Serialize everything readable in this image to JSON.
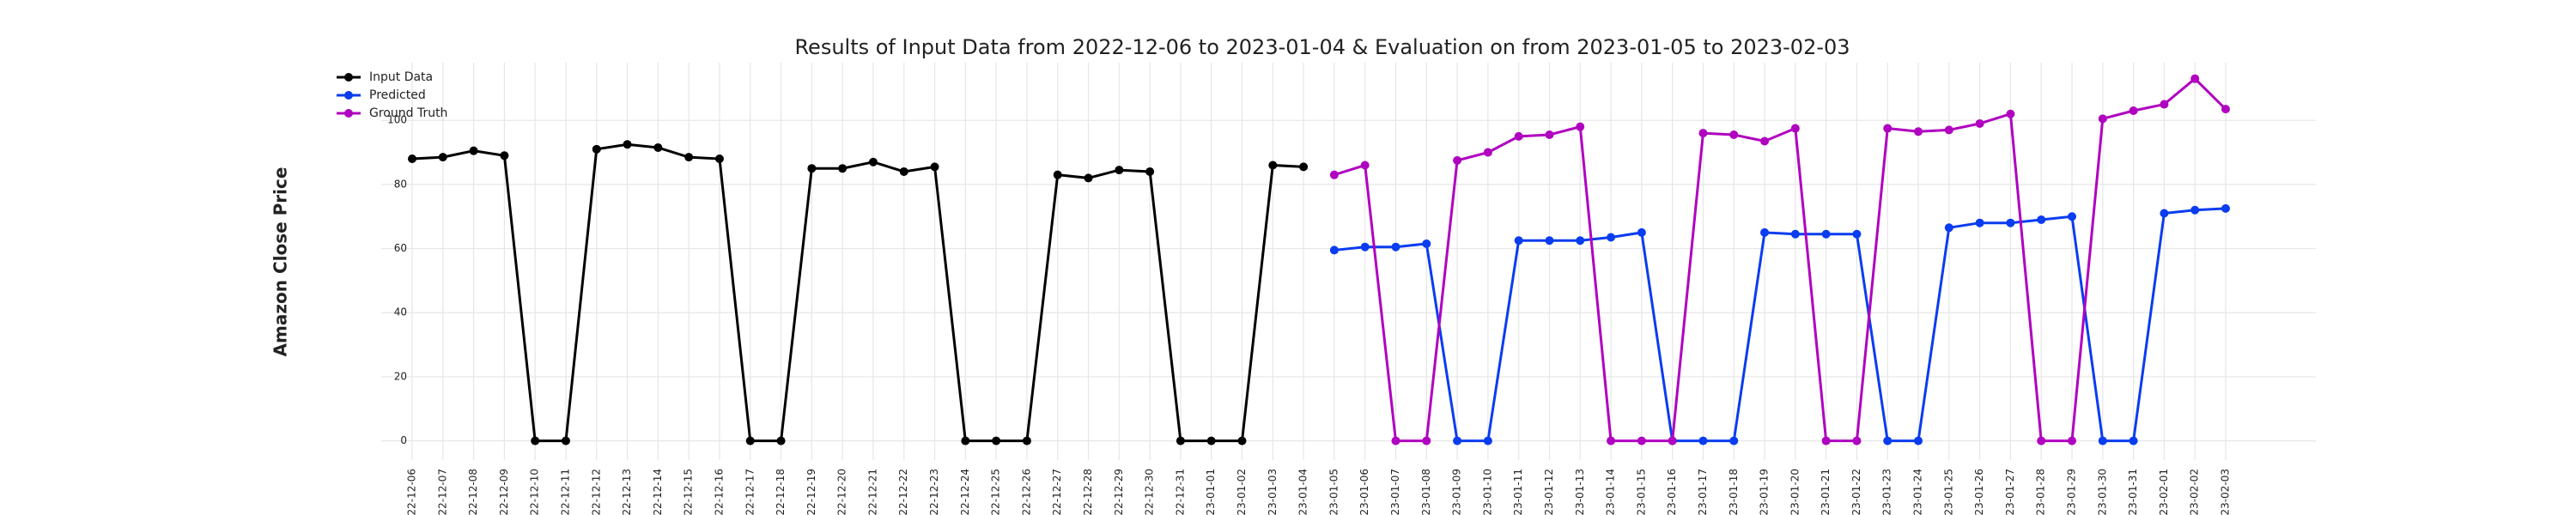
{
  "chart_data": {
    "type": "line",
    "title": "Results of Input Data from 2022-12-06 to 2023-01-04 & Evaluation on from 2023-01-05 to 2023-02-03",
    "ylabel": "Amazon Close Price",
    "categories": [
      "2022-12-06",
      "2022-12-07",
      "2022-12-08",
      "2022-12-09",
      "2022-12-10",
      "2022-12-11",
      "2022-12-12",
      "2022-12-13",
      "2022-12-14",
      "2022-12-15",
      "2022-12-16",
      "2022-12-17",
      "2022-12-18",
      "2022-12-19",
      "2022-12-20",
      "2022-12-21",
      "2022-12-22",
      "2022-12-23",
      "2022-12-24",
      "2022-12-25",
      "2022-12-26",
      "2022-12-27",
      "2022-12-28",
      "2022-12-29",
      "2022-12-30",
      "2022-12-31",
      "2023-01-01",
      "2023-01-02",
      "2023-01-03",
      "2023-01-04",
      "2023-01-05",
      "2023-01-06",
      "2023-01-07",
      "2023-01-08",
      "2023-01-09",
      "2023-01-10",
      "2023-01-11",
      "2023-01-12",
      "2023-01-13",
      "2023-01-14",
      "2023-01-15",
      "2023-01-16",
      "2023-01-17",
      "2023-01-18",
      "2023-01-19",
      "2023-01-20",
      "2023-01-21",
      "2023-01-22",
      "2023-01-23",
      "2023-01-24",
      "2023-01-25",
      "2023-01-26",
      "2023-01-27",
      "2023-01-28",
      "2023-01-29",
      "2023-01-30",
      "2023-01-31",
      "2023-02-01",
      "2023-02-02",
      "2023-02-03"
    ],
    "series": [
      {
        "name": "Input Data",
        "color": "#000000",
        "values": [
          88,
          88.5,
          90.5,
          89,
          0,
          0,
          91,
          92.5,
          91.5,
          88.5,
          88,
          0,
          0,
          85,
          85,
          87,
          84,
          85.5,
          0,
          0,
          0,
          83,
          82,
          84.5,
          84,
          0,
          0,
          0,
          86,
          85.5,
          null,
          null,
          null,
          null,
          null,
          null,
          null,
          null,
          null,
          null,
          null,
          null,
          null,
          null,
          null,
          null,
          null,
          null,
          null,
          null,
          null,
          null,
          null,
          null,
          null,
          null,
          null,
          null,
          null,
          null
        ]
      },
      {
        "name": "Predicted",
        "color": "#0a3cf0",
        "values": [
          null,
          null,
          null,
          null,
          null,
          null,
          null,
          null,
          null,
          null,
          null,
          null,
          null,
          null,
          null,
          null,
          null,
          null,
          null,
          null,
          null,
          null,
          null,
          null,
          null,
          null,
          null,
          null,
          null,
          null,
          59.5,
          60.5,
          60.5,
          61.5,
          0,
          0,
          62.5,
          62.5,
          62.5,
          63.5,
          65,
          0,
          0,
          0,
          65,
          64.5,
          64.5,
          64.5,
          0,
          0,
          66.5,
          68,
          68,
          69,
          70,
          0,
          0,
          71,
          72,
          72.5
        ]
      },
      {
        "name": "Ground Truth",
        "color": "#b000c0",
        "values": [
          null,
          null,
          null,
          null,
          null,
          null,
          null,
          null,
          null,
          null,
          null,
          null,
          null,
          null,
          null,
          null,
          null,
          null,
          null,
          null,
          null,
          null,
          null,
          null,
          null,
          null,
          null,
          null,
          null,
          null,
          83,
          86,
          0,
          0,
          87.5,
          90,
          95,
          95.5,
          98,
          0,
          0,
          0,
          96,
          95.5,
          93.5,
          97.5,
          0,
          0,
          97.5,
          96.5,
          97,
          99,
          102,
          0,
          0,
          100.5,
          103,
          105,
          113,
          103.5
        ]
      }
    ],
    "ylim": [
      -6,
      118
    ],
    "yticks": [
      0,
      20,
      40,
      60,
      80,
      100
    ],
    "grid": true,
    "legend": "upper left"
  }
}
